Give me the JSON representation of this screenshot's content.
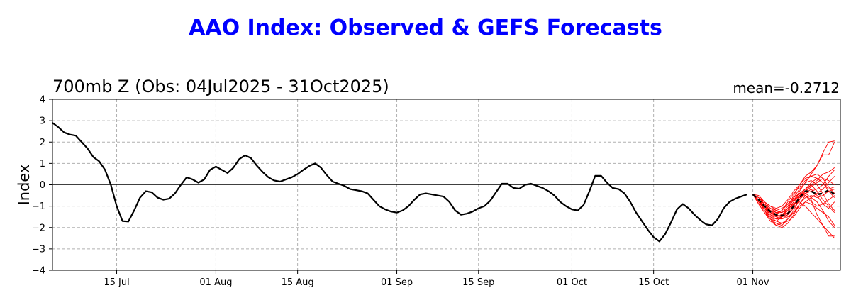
{
  "title": "AAO Index: Observed & GEFS Forecasts",
  "panel_title": "700mb Z (Obs: 04Jul2025 - 31Oct2025)",
  "mean_label": "mean=-0.2712",
  "colors": {
    "title": "#0000ff",
    "observed": "#000000",
    "members": "#ff0000",
    "mean": "#000000",
    "grid": "#b0b0b0"
  },
  "chart_data": {
    "type": "line",
    "title": "700mb Z (Obs: 04Jul2025 - 31Oct2025)",
    "ylabel": "Index",
    "xlabel": "",
    "ylim": [
      -4,
      4
    ],
    "x_day_range": [
      0,
      135
    ],
    "yticks": [
      4,
      3,
      2,
      1,
      0,
      -1,
      -2,
      -3,
      -4
    ],
    "xticks": [
      {
        "label": "15 Jul",
        "day": 11
      },
      {
        "label": "01 Aug",
        "day": 28
      },
      {
        "label": "15 Aug",
        "day": 42
      },
      {
        "label": "01 Sep",
        "day": 59
      },
      {
        "label": "15 Sep",
        "day": 73
      },
      {
        "label": "01 Oct",
        "day": 89
      },
      {
        "label": "15 Oct",
        "day": 103
      },
      {
        "label": "01 Nov",
        "day": 120
      }
    ],
    "grid": true,
    "zero_line": true,
    "observed": [
      2.9,
      2.7,
      2.45,
      2.35,
      2.3,
      2.0,
      1.7,
      1.3,
      1.1,
      0.7,
      0.0,
      -1.0,
      -1.7,
      -1.72,
      -1.2,
      -0.6,
      -0.3,
      -0.35,
      -0.6,
      -0.7,
      -0.65,
      -0.4,
      0.0,
      0.35,
      0.25,
      0.1,
      0.25,
      0.7,
      0.85,
      0.7,
      0.55,
      0.8,
      1.2,
      1.38,
      1.25,
      0.9,
      0.6,
      0.35,
      0.2,
      0.15,
      0.25,
      0.35,
      0.5,
      0.7,
      0.88,
      1.0,
      0.8,
      0.45,
      0.15,
      0.05,
      -0.05,
      -0.2,
      -0.25,
      -0.3,
      -0.4,
      -0.7,
      -1.0,
      -1.15,
      -1.25,
      -1.3,
      -1.2,
      -1.0,
      -0.7,
      -0.45,
      -0.4,
      -0.45,
      -0.5,
      -0.55,
      -0.8,
      -1.2,
      -1.4,
      -1.35,
      -1.25,
      -1.1,
      -1.0,
      -0.75,
      -0.35,
      0.05,
      0.05,
      -0.15,
      -0.18,
      0.0,
      0.05,
      -0.05,
      -0.15,
      -0.3,
      -0.5,
      -0.8,
      -1.0,
      -1.15,
      -1.2,
      -0.95,
      -0.3,
      0.42,
      0.42,
      0.1,
      -0.15,
      -0.2,
      -0.4,
      -0.8,
      -1.3,
      -1.7,
      -2.1,
      -2.45,
      -2.65,
      -2.3,
      -1.75,
      -1.15,
      -0.9,
      -1.1,
      -1.4,
      -1.65,
      -1.85,
      -1.9,
      -1.6,
      -1.1,
      -0.8,
      -0.65,
      -0.55,
      -0.45
    ],
    "forecast_mean": {
      "start_day": 120,
      "values": [
        -0.45,
        -0.7,
        -1.0,
        -1.25,
        -1.4,
        -1.45,
        -1.35,
        -1.0,
        -0.6,
        -0.3,
        -0.3,
        -0.45,
        -0.4,
        -0.25,
        -0.45
      ]
    },
    "forecast_members": [
      [
        -0.45,
        -0.7,
        -1.0,
        -1.3,
        -1.5,
        -1.6,
        -1.4,
        -1.0,
        -0.5,
        -0.2,
        0.1,
        0.3,
        0.1,
        -0.3,
        -0.6
      ],
      [
        -0.45,
        -0.6,
        -0.9,
        -1.2,
        -1.3,
        -1.2,
        -0.9,
        -0.6,
        -0.4,
        -0.2,
        0.0,
        0.2,
        0.5,
        0.6,
        0.8
      ],
      [
        -0.45,
        -0.8,
        -1.1,
        -1.5,
        -1.7,
        -1.8,
        -1.7,
        -1.5,
        -1.1,
        -0.8,
        -0.9,
        -1.1,
        -1.3,
        -1.5,
        -1.9
      ],
      [
        -0.45,
        -0.7,
        -1.2,
        -1.6,
        -1.9,
        -2.0,
        -1.8,
        -1.4,
        -0.9,
        -0.5,
        -0.7,
        -1.4,
        -1.9,
        -2.4,
        -2.4
      ],
      [
        -0.45,
        -0.5,
        -0.8,
        -1.0,
        -1.1,
        -1.0,
        -0.7,
        -0.3,
        0.0,
        0.4,
        0.6,
        0.9,
        1.4,
        1.4,
        2.0
      ],
      [
        -0.45,
        -0.6,
        -0.8,
        -1.1,
        -1.3,
        -1.4,
        -1.2,
        -0.8,
        -0.3,
        0.1,
        0.5,
        0.9,
        1.5,
        2.0,
        2.05
      ],
      [
        -0.45,
        -0.7,
        -1.0,
        -1.4,
        -1.6,
        -1.5,
        -1.2,
        -0.8,
        -0.5,
        -0.4,
        -0.6,
        -0.8,
        -1.2,
        -1.7,
        -2.0
      ],
      [
        -0.45,
        -0.9,
        -1.3,
        -1.7,
        -1.9,
        -1.8,
        -1.6,
        -1.3,
        -1.0,
        -0.8,
        -0.6,
        -0.4,
        -0.2,
        0.1,
        0.4
      ],
      [
        -0.45,
        -0.8,
        -1.2,
        -1.6,
        -1.8,
        -1.9,
        -1.6,
        -1.2,
        -0.7,
        -0.3,
        0.0,
        -0.3,
        -0.7,
        -1.0,
        -1.3
      ],
      [
        -0.45,
        -0.7,
        -0.9,
        -1.1,
        -1.2,
        -1.1,
        -0.9,
        -0.7,
        -0.5,
        -0.3,
        -0.1,
        0.1,
        0.3,
        0.2,
        0.0
      ],
      [
        -0.45,
        -0.8,
        -1.1,
        -1.4,
        -1.5,
        -1.4,
        -1.1,
        -0.7,
        -0.4,
        -0.5,
        -0.8,
        -1.0,
        -0.9,
        -0.7,
        -0.5
      ],
      [
        -0.45,
        -0.6,
        -0.9,
        -1.2,
        -1.4,
        -1.5,
        -1.3,
        -0.9,
        -0.6,
        -0.4,
        -0.3,
        -0.2,
        0.0,
        0.4,
        0.7
      ],
      [
        -0.45,
        -0.7,
        -1.0,
        -1.2,
        -1.3,
        -1.3,
        -1.1,
        -0.9,
        -0.8,
        -1.0,
        -1.3,
        -1.6,
        -1.9,
        -2.2,
        -2.5
      ],
      [
        -0.45,
        -0.9,
        -1.3,
        -1.6,
        -1.7,
        -1.5,
        -1.1,
        -0.6,
        -0.2,
        0.1,
        0.2,
        0.0,
        -0.4,
        -0.9,
        -1.2
      ],
      [
        -0.45,
        -0.7,
        -1.0,
        -1.3,
        -1.45,
        -1.5,
        -1.4,
        -1.1,
        -0.7,
        -0.4,
        -0.2,
        -0.5,
        -0.9,
        -1.1,
        -0.8
      ],
      [
        -0.45,
        -0.6,
        -0.8,
        -1.0,
        -1.2,
        -1.3,
        -1.0,
        -0.5,
        0.0,
        0.3,
        0.4,
        0.3,
        0.1,
        -0.2,
        -0.1
      ],
      [
        -0.45,
        -0.8,
        -1.2,
        -1.5,
        -1.6,
        -1.6,
        -1.5,
        -1.3,
        -0.9,
        -0.6,
        -0.5,
        -0.6,
        -0.5,
        -0.3,
        -0.2
      ],
      [
        -0.45,
        -0.7,
        -1.1,
        -1.3,
        -1.35,
        -1.2,
        -0.8,
        -0.4,
        -0.1,
        0.2,
        0.4,
        0.5,
        0.3,
        -0.1,
        -0.4
      ]
    ]
  }
}
